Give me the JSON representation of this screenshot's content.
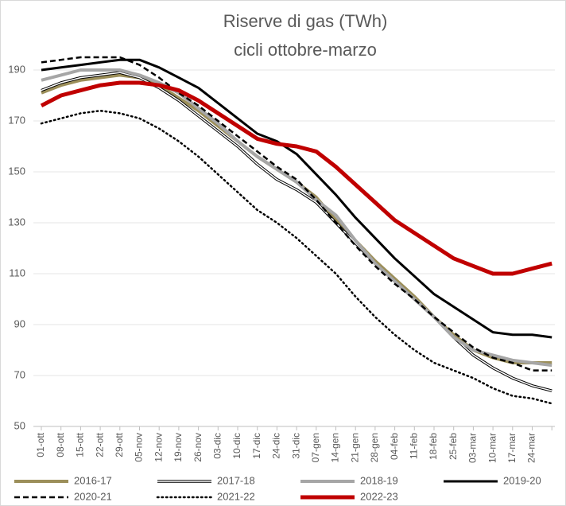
{
  "chart_data": {
    "type": "line",
    "title": "Riserve di gas (TWh)",
    "subtitle": "cicli ottobre-marzo",
    "categories": [
      "01-ott",
      "08-ott",
      "15-ott",
      "22-ott",
      "29-ott",
      "05-nov",
      "12-nov",
      "19-nov",
      "26-nov",
      "03-dic",
      "10-dic",
      "17-dic",
      "24-dic",
      "31-dic",
      "07-gen",
      "14-gen",
      "21-gen",
      "28-gen",
      "04-feb",
      "11-feb",
      "18-feb",
      "25-feb",
      "03-mar",
      "10-mar",
      "17-mar",
      "24-mar",
      null
    ],
    "ylim": [
      50,
      200
    ],
    "yticks": [
      50,
      70,
      90,
      110,
      130,
      150,
      170,
      190
    ],
    "grid": true,
    "legend": "bottom",
    "series": [
      {
        "name": "2016-17",
        "color": "#9c8f5a",
        "style": "solid",
        "values": [
          181,
          184,
          186,
          187,
          188,
          187,
          184,
          179,
          174,
          168,
          162,
          156,
          151,
          146,
          140,
          131,
          123,
          115,
          108,
          101,
          93,
          86,
          80,
          77,
          75,
          75,
          75
        ]
      },
      {
        "name": "2017-18",
        "color": "#ffffff",
        "style": "outline",
        "values": [
          182,
          185,
          187,
          188,
          189,
          187,
          183,
          178,
          172,
          166,
          160,
          153,
          147,
          143,
          138,
          130,
          122,
          114,
          107,
          100,
          93,
          85,
          78,
          73,
          69,
          66,
          64
        ]
      },
      {
        "name": "2018-19",
        "color": "#a6a6a6",
        "style": "solid",
        "values": [
          186,
          188,
          190,
          190,
          190,
          188,
          185,
          181,
          175,
          169,
          162,
          156,
          151,
          146,
          139,
          133,
          123,
          114,
          107,
          100,
          93,
          85,
          80,
          78,
          76,
          75,
          74
        ]
      },
      {
        "name": "2019-20",
        "color": "#000000",
        "style": "solid",
        "values": [
          190,
          191,
          192,
          193,
          194,
          194,
          191,
          187,
          183,
          177,
          171,
          165,
          162,
          157,
          149,
          141,
          132,
          124,
          116,
          109,
          102,
          97,
          92,
          87,
          86,
          86,
          85
        ]
      },
      {
        "name": "2020-21",
        "color": "#000000",
        "style": "dashed",
        "values": [
          193,
          194,
          195,
          195,
          195,
          192,
          187,
          181,
          176,
          170,
          164,
          158,
          152,
          147,
          139,
          130,
          121,
          113,
          106,
          100,
          93,
          87,
          81,
          77,
          75,
          72,
          72
        ]
      },
      {
        "name": "2021-22",
        "color": "#000000",
        "style": "dotted",
        "values": [
          169,
          171,
          173,
          174,
          173,
          171,
          167,
          162,
          156,
          149,
          142,
          135,
          130,
          124,
          117,
          110,
          101,
          93,
          86,
          80,
          75,
          72,
          69,
          65,
          62,
          61,
          59
        ]
      },
      {
        "name": "2022-23",
        "color": "#c00000",
        "style": "thick",
        "values": [
          176,
          180,
          182,
          184,
          185,
          185,
          184,
          182,
          178,
          173,
          168,
          163,
          161,
          160,
          158,
          152,
          145,
          138,
          131,
          126,
          121,
          116,
          113,
          110,
          110,
          112,
          114
        ]
      }
    ]
  }
}
